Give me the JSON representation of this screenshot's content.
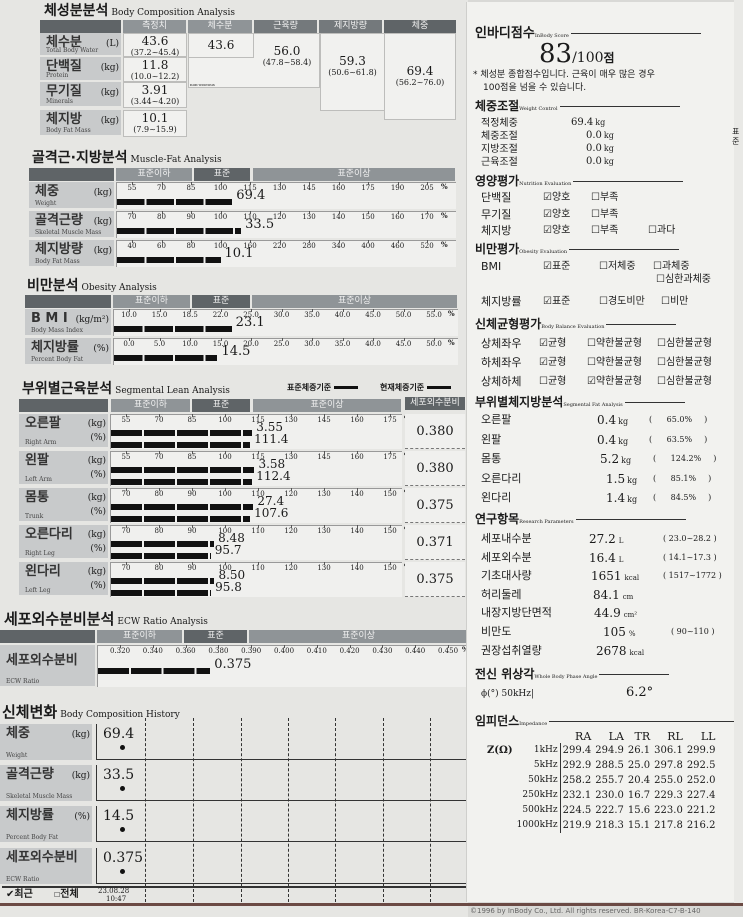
{
  "body_composition": {
    "title": "체성분분석",
    "title_en": "Body Composition Analysis",
    "headers": [
      "측정치",
      "체수분",
      "근육량",
      "제지방량",
      "체중"
    ],
    "rows": [
      {
        "name": "체수분",
        "en": "Total Body Water",
        "unit": "(L)",
        "value": "43.6",
        "range": "(37.2~45.4)"
      },
      {
        "name": "단백질",
        "en": "Protein",
        "unit": "(kg)",
        "value": "11.8",
        "range": "(10.0~12.2)"
      },
      {
        "name": "무기질",
        "en": "Minerals",
        "unit": "(kg)",
        "value": "3.91",
        "range": "(3.44~4.20)"
      },
      {
        "name": "체지방",
        "en": "Body Fat Mass",
        "unit": "(kg)",
        "value": "10.1",
        "range": "(7.9~15.9)"
      }
    ],
    "tbw": "43.6",
    "muscle": "56.0",
    "muscle_range": "(47.8~58.4)",
    "non_osseous": "non-osseous",
    "ffm": "59.3",
    "ffm_range": "(50.6~61.8)",
    "weight": "69.4",
    "weight_range": "(56.2~76.0)"
  },
  "bands": {
    "under": "표준이하",
    "normal": "표준",
    "over": "표준이상"
  },
  "muscle_fat": {
    "title": "골격근·지방분석",
    "title_en": "Muscle-Fat Analysis",
    "rows": [
      {
        "name": "체중",
        "en": "Weight",
        "unit": "(kg)",
        "ticks": [
          "55",
          "70",
          "85",
          "100",
          "115",
          "130",
          "145",
          "160",
          "175",
          "190",
          "205"
        ],
        "bar_percent": 106,
        "value": "69.4"
      },
      {
        "name": "골격근량",
        "en": "Skeletal Muscle Mass",
        "unit": "(kg)",
        "ticks": [
          "70",
          "80",
          "90",
          "100",
          "110",
          "120",
          "130",
          "140",
          "150",
          "160",
          "170"
        ],
        "bar_percent": 107,
        "value": "33.5"
      },
      {
        "name": "체지방량",
        "en": "Body Fat Mass",
        "unit": "(kg)",
        "ticks": [
          "40",
          "60",
          "80",
          "100",
          "160",
          "220",
          "280",
          "340",
          "400",
          "460",
          "520"
        ],
        "bar_percent": 100,
        "value": "10.1"
      }
    ]
  },
  "obesity": {
    "title": "비만분석",
    "title_en": "Obesity Analysis",
    "rows": [
      {
        "name": "B M I",
        "en": "Body Mass Index",
        "unit": "(kg/m²)",
        "ticks": [
          "10.0",
          "15.0",
          "18.5",
          "22.0",
          "25.0",
          "30.0",
          "35.0",
          "40.0",
          "45.0",
          "50.0",
          "55.0"
        ],
        "bar_percent": 23.1,
        "value": "23.1"
      },
      {
        "name": "체지방률",
        "en": "Percent Body Fat",
        "unit": "(%)",
        "ticks": [
          "0.0",
          "5.0",
          "10.0",
          "15.0",
          "20.0",
          "25.0",
          "30.0",
          "35.0",
          "40.0",
          "45.0",
          "50.0"
        ],
        "bar_percent": 14.5,
        "value": "14.5"
      }
    ]
  },
  "segmental": {
    "title": "부위별근육분석",
    "title_en": "Segmental Lean Analysis",
    "legend_std": "표준체중기준",
    "legend_cur": "현재체중기준",
    "ecw_header": "세포외수분비",
    "rows": [
      {
        "name": "오른팔",
        "en": "Right Arm",
        "ticks": [
          "55",
          "70",
          "85",
          "100",
          "115",
          "130",
          "145",
          "160",
          "175"
        ],
        "kg": "3.55",
        "pct": "111.4",
        "bar_percent": 111.4,
        "ecw": "0.380"
      },
      {
        "name": "왼팔",
        "en": "Left Arm",
        "ticks": [
          "55",
          "70",
          "85",
          "100",
          "115",
          "130",
          "145",
          "160",
          "175"
        ],
        "kg": "3.58",
        "pct": "112.4",
        "bar_percent": 112.4,
        "ecw": "0.380"
      },
      {
        "name": "몸통",
        "en": "Trunk",
        "ticks": [
          "70",
          "80",
          "90",
          "100",
          "110",
          "120",
          "130",
          "140",
          "150"
        ],
        "kg": "27.4",
        "pct": "107.6",
        "bar_percent": 107.6,
        "ecw": "0.375"
      },
      {
        "name": "오른다리",
        "en": "Right Leg",
        "ticks": [
          "70",
          "80",
          "90",
          "100",
          "110",
          "120",
          "130",
          "140",
          "150"
        ],
        "kg": "8.48",
        "pct": "95.7",
        "bar_percent": 95.7,
        "ecw": "0.371"
      },
      {
        "name": "왼다리",
        "en": "Left Leg",
        "ticks": [
          "70",
          "80",
          "90",
          "100",
          "110",
          "120",
          "130",
          "140",
          "150"
        ],
        "kg": "8.50",
        "pct": "95.8",
        "bar_percent": 95.8,
        "ecw": "0.375"
      }
    ],
    "unit_kg": "(kg)",
    "unit_pct": "(%)"
  },
  "ecw": {
    "title": "세포외수분비분석",
    "title_en": "ECW Ratio Analysis",
    "name": "세포외수분비",
    "en": "ECW Ratio",
    "ticks": [
      "0.320",
      "0.340",
      "0.360",
      "0.380",
      "0.390",
      "0.400",
      "0.410",
      "0.420",
      "0.430",
      "0.440",
      "0.450"
    ],
    "bar_percent": 0.375,
    "value": "0.375"
  },
  "history": {
    "title": "신체변화",
    "title_en": "Body Composition History",
    "rows": [
      {
        "name": "체중",
        "en": "Weight",
        "unit": "(kg)",
        "value": "69.4"
      },
      {
        "name": "골격근량",
        "en": "Skeletal Muscle Mass",
        "unit": "(kg)",
        "value": "33.5"
      },
      {
        "name": "체지방률",
        "en": "Percent Body Fat",
        "unit": "(%)",
        "value": "14.5"
      },
      {
        "name": "세포외수분비",
        "en": "ECW Ratio",
        "unit": "",
        "value": "0.375"
      }
    ],
    "recent": "최근",
    "all": "전체",
    "date": "23.08.28",
    "time": "10:47"
  },
  "score": {
    "title": "인바디점수",
    "title_en": "InBody Score",
    "value": "83",
    "max": "/100",
    "unit": "점",
    "note1": "* 체성분 종합점수입니다. 근육이 매우 많은 경우",
    "note2": "100점을 넘을 수 있습니다."
  },
  "weight_control": {
    "title": "체중조절",
    "title_en": "Weight Control",
    "rows": [
      {
        "label": "적정체중",
        "value": "69.4",
        "unit": "kg"
      },
      {
        "label": "체중조절",
        "value": "0.0",
        "unit": "kg"
      },
      {
        "label": "지방조절",
        "value": "0.0",
        "unit": "kg"
      },
      {
        "label": "근육조절",
        "value": "0.0",
        "unit": "kg"
      }
    ]
  },
  "nutrition": {
    "title": "영양평가",
    "title_en": "Nutrition Evaluation",
    "rows": [
      {
        "label": "단백질",
        "o1": "양호",
        "o2": "부족",
        "checked": "양호"
      },
      {
        "label": "무기질",
        "o1": "양호",
        "o2": "부족",
        "checked": "양호"
      },
      {
        "label": "체지방",
        "o1": "양호",
        "o2": "부족",
        "o3": "과다",
        "checked": "양호"
      }
    ]
  },
  "obesity_eval": {
    "title": "비만평가",
    "title_en": "Obesity Evaluation",
    "bmi": {
      "label": "BMI",
      "o1": "표준",
      "o2": "저체중",
      "o3": "과체중",
      "o4": "심한과체중",
      "checked": "표준"
    },
    "pbf": {
      "label": "체지방률",
      "o1": "표준",
      "o2": "경도비만",
      "o3": "비만",
      "checked": "표준"
    }
  },
  "balance": {
    "title": "신체균형평가",
    "title_en": "Body Balance Evaluation",
    "rows": [
      {
        "label": "상체좌우",
        "o1": "균형",
        "o2": "약한불균형",
        "o3": "심한불균형",
        "checked": "균형"
      },
      {
        "label": "하체좌우",
        "o1": "균형",
        "o2": "약한불균형",
        "o3": "심한불균형",
        "checked": "균형"
      },
      {
        "label": "상체하체",
        "o1": "균형",
        "o2": "약한불균형",
        "o3": "심한불균형",
        "checked": "약한불균형"
      }
    ]
  },
  "seg_fat": {
    "title": "부위별체지방분석",
    "title_en": "Segmental Fat Analysis",
    "rows": [
      {
        "label": "오른팔",
        "value": "0.4",
        "unit": "kg",
        "pct": "65.0%"
      },
      {
        "label": "왼팔",
        "value": "0.4",
        "unit": "kg",
        "pct": "63.5%"
      },
      {
        "label": "몸통",
        "value": "5.2",
        "unit": "kg",
        "pct": "124.2%"
      },
      {
        "label": "오른다리",
        "value": "1.5",
        "unit": "kg",
        "pct": "85.1%"
      },
      {
        "label": "왼다리",
        "value": "1.4",
        "unit": "kg",
        "pct": "84.5%"
      }
    ]
  },
  "research": {
    "title": "연구항목",
    "title_en": "Research Parameters",
    "rows": [
      {
        "label": "세포내수분",
        "value": "27.2",
        "unit": "L",
        "range": "( 23.0~28.2 )"
      },
      {
        "label": "세포외수분",
        "value": "16.4",
        "unit": "L",
        "range": "( 14.1~17.3 )"
      },
      {
        "label": "기초대사량",
        "value": "1651",
        "unit": "kcal",
        "range": "( 1517~1772 )"
      },
      {
        "label": "허리둘레",
        "value": "84.1",
        "unit": "cm",
        "range": ""
      },
      {
        "label": "내장지방단면적",
        "value": "44.9",
        "unit": "cm²",
        "range": ""
      },
      {
        "label": "비만도",
        "value": "105",
        "unit": "%",
        "range": "(   90~110 )"
      },
      {
        "label": "권장섭취열량",
        "value": "2678",
        "unit": "kcal",
        "range": ""
      }
    ]
  },
  "phase": {
    "title": "전신 위상각",
    "title_en": "Whole Body Phase Angle",
    "label": "ϕ(°) 50kHz|",
    "value": "6.2°"
  },
  "impedance": {
    "title": "임피던스",
    "title_en": "Impedance",
    "z": "Z(Ω)",
    "cols": [
      "RA",
      "LA",
      "TR",
      "RL",
      "LL"
    ],
    "rows": [
      {
        "freq": "1kHz",
        "v": [
          "299.4",
          "294.9",
          "26.1",
          "306.1",
          "299.9"
        ]
      },
      {
        "freq": "5kHz",
        "v": [
          "292.9",
          "288.5",
          "25.0",
          "297.8",
          "292.5"
        ]
      },
      {
        "freq": "50kHz",
        "v": [
          "258.2",
          "255.7",
          "20.4",
          "255.0",
          "252.0"
        ]
      },
      {
        "freq": "250kHz",
        "v": [
          "232.1",
          "230.0",
          "16.7",
          "229.3",
          "227.4"
        ]
      },
      {
        "freq": "500kHz",
        "v": [
          "224.5",
          "222.7",
          "15.6",
          "223.0",
          "221.2"
        ]
      },
      {
        "freq": "1000kHz",
        "v": [
          "219.9",
          "218.3",
          "15.1",
          "217.8",
          "216.2"
        ]
      }
    ]
  },
  "footer": {
    "copyright": "©1996 by InBody Co., Ltd. All rights reserved. BR-Korea-C7-B-140"
  },
  "side_fragment": "표준"
}
